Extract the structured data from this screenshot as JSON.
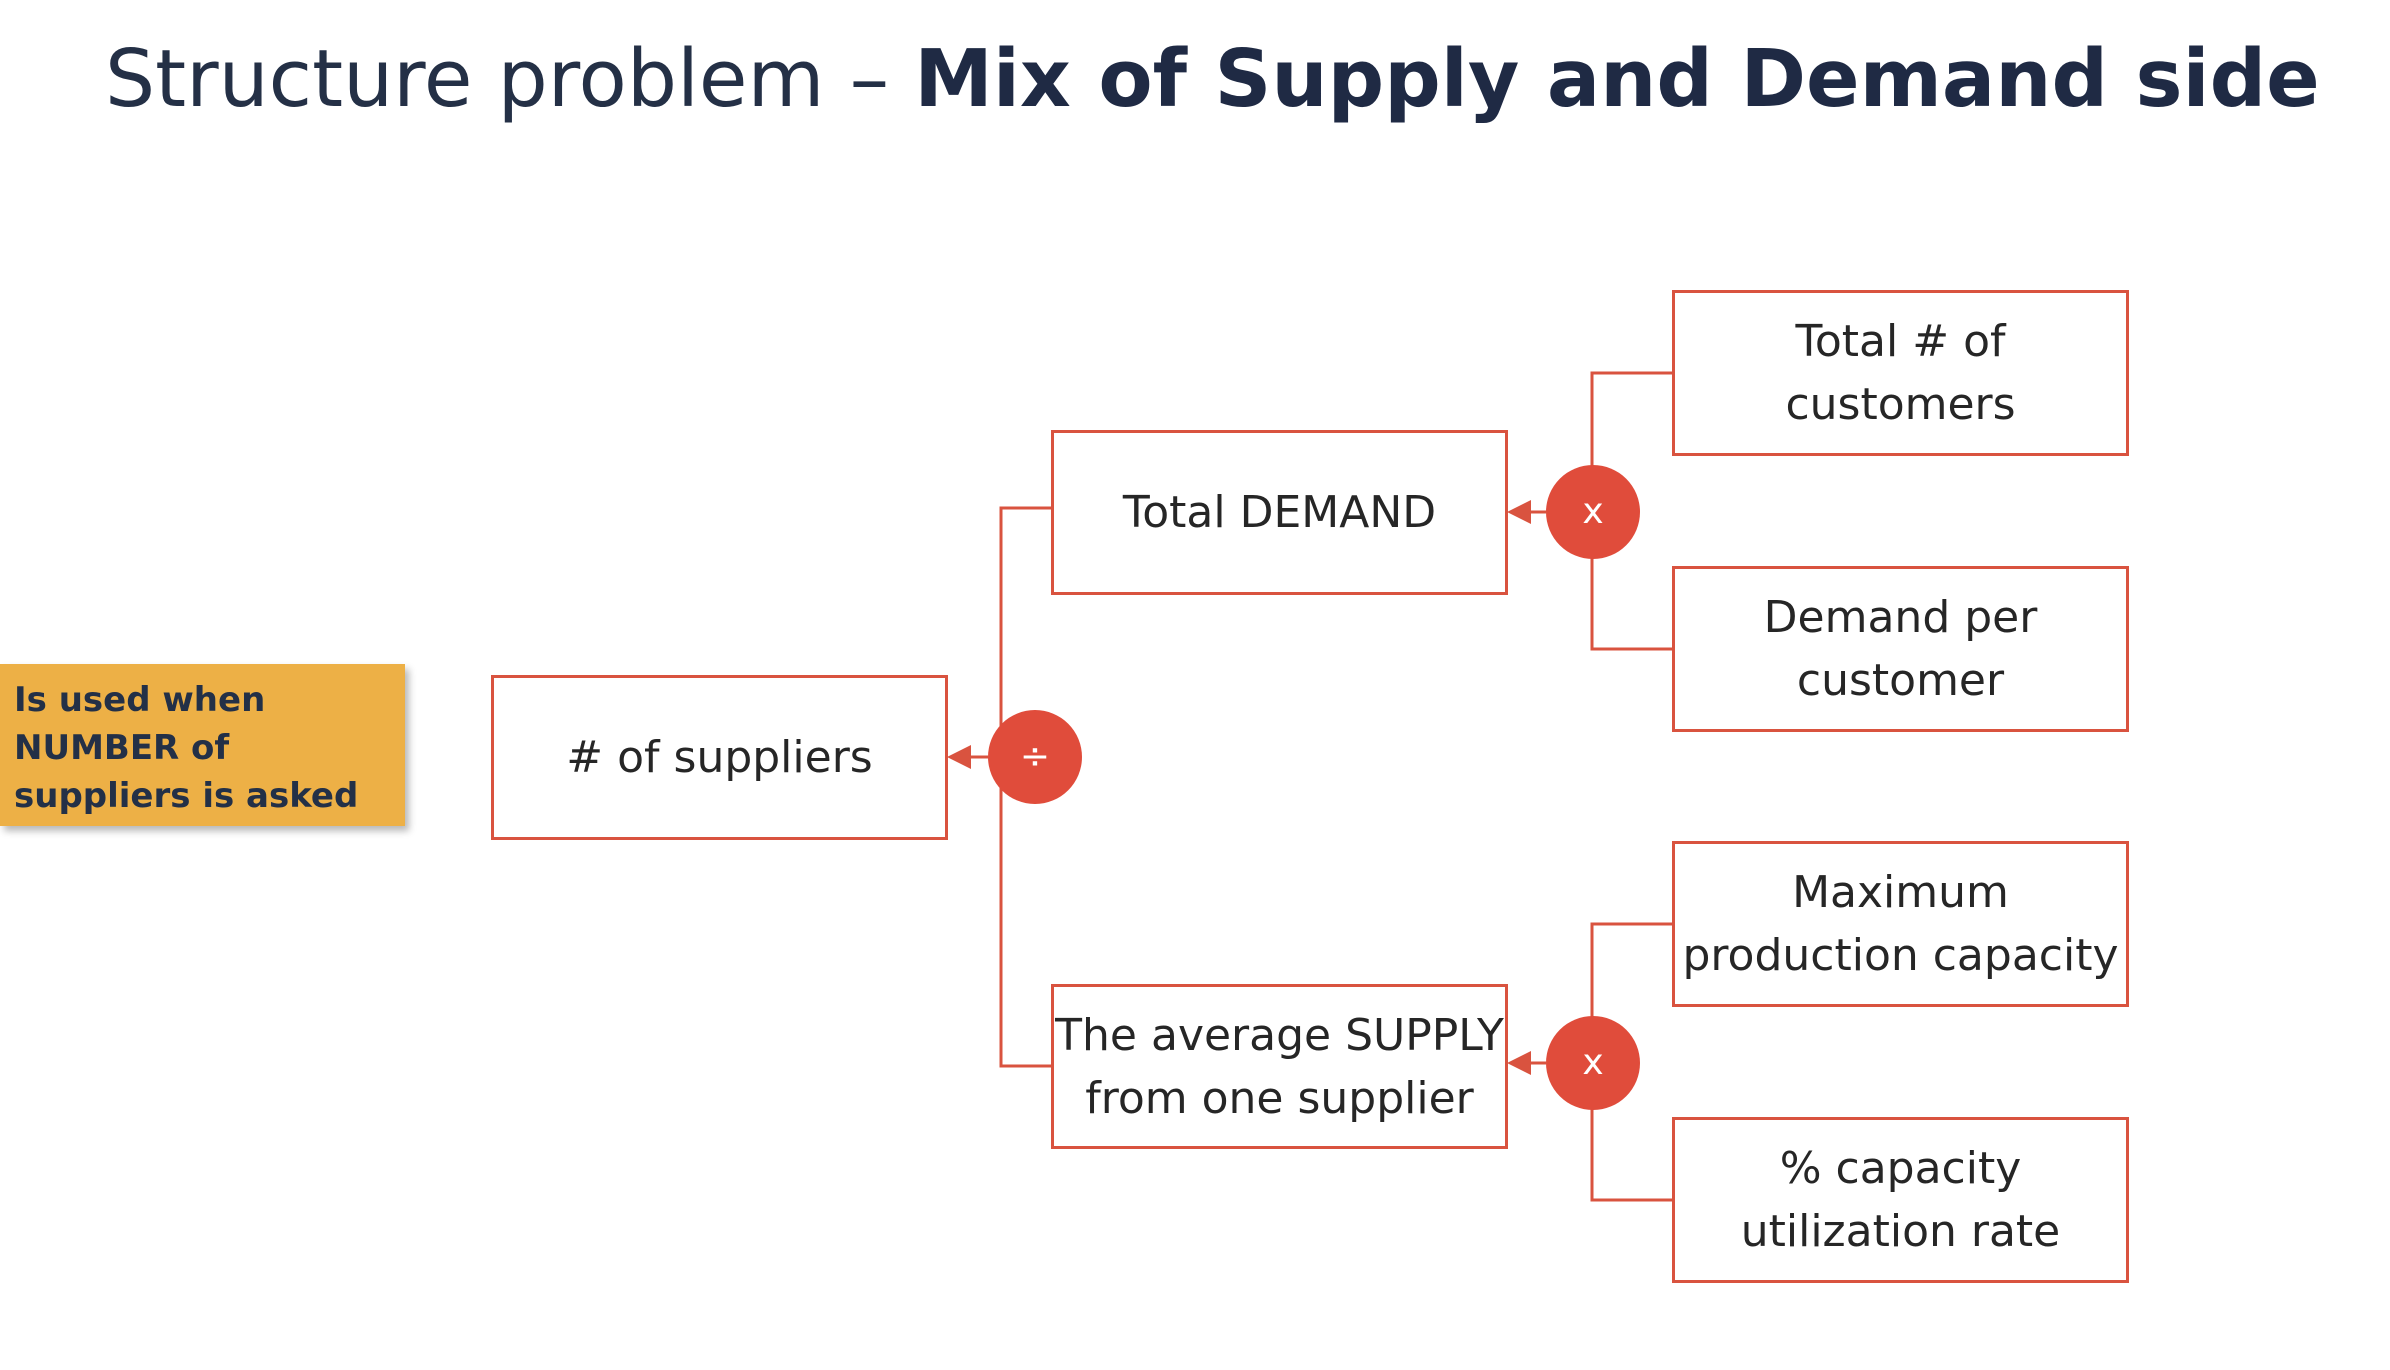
{
  "title": {
    "regular": "Structure problem – ",
    "bold": "Mix of Supply and Demand side"
  },
  "note": {
    "lines": [
      "Is used when",
      "NUMBER of",
      "suppliers is asked"
    ]
  },
  "tree": {
    "root": "# of suppliers",
    "root_operator": "÷",
    "demand": {
      "label": "Total DEMAND",
      "operator": "x",
      "children": [
        [
          "Total # of",
          "customers"
        ],
        [
          "Demand per",
          "customer"
        ]
      ]
    },
    "supply": {
      "lines": [
        "The average SUPPLY",
        "from one supplier"
      ],
      "operator": "x",
      "children": [
        [
          "Maximum",
          "production capacity"
        ],
        [
          "% capacity",
          "utilization rate"
        ]
      ]
    }
  },
  "colors": {
    "accent": "#e04c3b",
    "box_border": "#d9533f",
    "note_background": "#edb046",
    "title": "#243046"
  }
}
